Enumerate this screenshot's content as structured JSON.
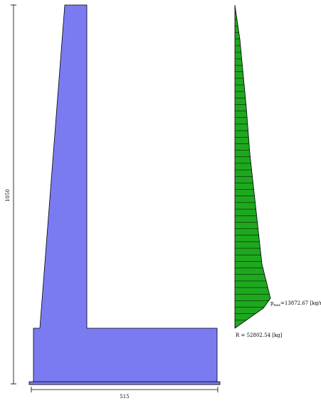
{
  "colors": {
    "wall_fill": "#7b7bf1",
    "pressure_fill": "#1ea81e",
    "outline": "#000000",
    "background": "#ffffff"
  },
  "wall": {
    "height_dimension": "1050",
    "base_dimension": "515"
  },
  "pressure": {
    "max_label_prefix": "p",
    "max_label_subscript": "max",
    "max_label_value": "=13872.67 [kg/mq]",
    "resultant_label": "R = 52802.54 [kg]",
    "max_pressure_kg_per_m2": 13872.67,
    "resultant_kg": 52802.54,
    "hatch_line_count": 50
  }
}
